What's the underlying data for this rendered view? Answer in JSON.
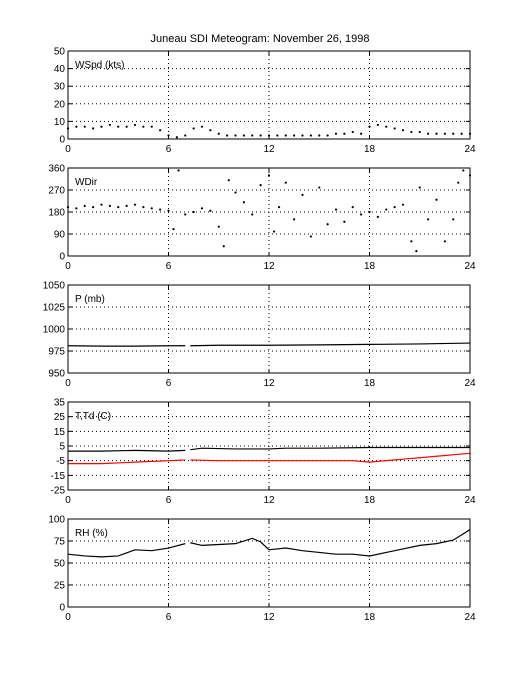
{
  "figure": {
    "title": "Juneau SDI Meteogram:  November 26, 1998"
  },
  "chart_data": [
    {
      "type": "scatter",
      "label": "WSpd (kts)",
      "xlim": [
        0,
        24
      ],
      "ylim": [
        0,
        50
      ],
      "xticks": [
        0,
        6,
        12,
        18,
        24
      ],
      "yticks": [
        0,
        10,
        20,
        30,
        40,
        50
      ],
      "grid": true,
      "series": [
        {
          "color": "#000000",
          "gaps": [],
          "x": [
            0,
            0.5,
            1,
            1.5,
            2,
            2.5,
            3,
            3.5,
            4,
            4.5,
            5,
            5.5,
            6,
            6.5,
            7,
            7.5,
            8,
            8.5,
            9,
            9.5,
            10,
            10.5,
            11,
            11.5,
            12,
            12.5,
            13,
            13.5,
            14,
            14.5,
            15,
            15.5,
            16,
            16.5,
            17,
            17.5,
            18,
            18.5,
            19,
            19.5,
            20,
            20.5,
            21,
            21.5,
            22,
            22.5,
            23,
            23.5,
            24
          ],
          "y": [
            6,
            7,
            7,
            6,
            7,
            8,
            7,
            7,
            8,
            7,
            7,
            5,
            2,
            1,
            2,
            6,
            7,
            5,
            3,
            2,
            2,
            2,
            2,
            2,
            2,
            2,
            2,
            2,
            2,
            2,
            2,
            2,
            3,
            3,
            4,
            3,
            7,
            8,
            7,
            6,
            5,
            4,
            4,
            3,
            3,
            3,
            3,
            3,
            3
          ]
        }
      ]
    },
    {
      "type": "scatter",
      "label": "WDir",
      "xlim": [
        0,
        24
      ],
      "ylim": [
        0,
        360
      ],
      "xticks": [
        0,
        6,
        12,
        18,
        24
      ],
      "yticks": [
        0,
        90,
        180,
        270,
        360
      ],
      "grid": true,
      "series": [
        {
          "color": "#000000",
          "gaps": [],
          "x": [
            0,
            0.5,
            1,
            1.5,
            2,
            2.5,
            3,
            3.5,
            4,
            4.5,
            5,
            5.5,
            6,
            6.3,
            6.6,
            7,
            7.5,
            8,
            8.5,
            9,
            9.3,
            9.6,
            10,
            10.5,
            11,
            11.5,
            12,
            12.3,
            12.6,
            13,
            13.5,
            14,
            14.5,
            15,
            15.5,
            16,
            16.5,
            17,
            17.5,
            18,
            18.5,
            19,
            19.5,
            20,
            20.5,
            20.8,
            21,
            21.5,
            22,
            22.5,
            23,
            23.3,
            23.6,
            24
          ],
          "y": [
            200,
            195,
            205,
            200,
            210,
            205,
            200,
            205,
            210,
            200,
            195,
            190,
            185,
            110,
            350,
            170,
            180,
            195,
            185,
            120,
            40,
            310,
            260,
            220,
            170,
            290,
            330,
            100,
            200,
            300,
            150,
            250,
            80,
            280,
            130,
            190,
            140,
            200,
            170,
            180,
            160,
            190,
            200,
            210,
            60,
            20,
            280,
            150,
            230,
            60,
            150,
            300,
            350,
            330
          ]
        }
      ]
    },
    {
      "type": "line",
      "label": "P (mb)",
      "xlim": [
        0,
        24
      ],
      "ylim": [
        950,
        1050
      ],
      "xticks": [
        0,
        6,
        12,
        18,
        24
      ],
      "yticks": [
        950,
        975,
        1000,
        1025,
        1050
      ],
      "grid": true,
      "series": [
        {
          "color": "#000000",
          "gaps": [
            [
              7.0,
              7.3
            ]
          ],
          "x": [
            0,
            2,
            4,
            6,
            7,
            7.3,
            9,
            12,
            15,
            18,
            21,
            24
          ],
          "y": [
            981,
            980.5,
            980.5,
            981,
            981,
            981,
            981.5,
            981.5,
            982,
            982.5,
            983,
            984
          ]
        }
      ]
    },
    {
      "type": "line",
      "label": "T,Td (C)",
      "xlim": [
        0,
        24
      ],
      "ylim": [
        -25,
        35
      ],
      "xticks": [
        0,
        6,
        12,
        18,
        24
      ],
      "yticks": [
        -25,
        -15,
        -5,
        5,
        15,
        25,
        35
      ],
      "grid": true,
      "series": [
        {
          "color": "#000000",
          "gaps": [
            [
              7.0,
              7.3
            ]
          ],
          "x": [
            0,
            2,
            4,
            6,
            7,
            7.3,
            8,
            10,
            12,
            13,
            15,
            18,
            20,
            22,
            24
          ],
          "y": [
            1.5,
            1.5,
            2,
            1.5,
            2,
            2.5,
            3.5,
            3,
            3,
            3.5,
            3.5,
            4,
            4,
            4,
            4
          ]
        },
        {
          "color": "#ff0000",
          "gaps": [
            [
              7.0,
              7.3
            ]
          ],
          "x": [
            0,
            2,
            4,
            6,
            7,
            7.3,
            9,
            12,
            15,
            17,
            18,
            20,
            22,
            24
          ],
          "y": [
            -7,
            -7,
            -6,
            -5,
            -4.5,
            -4.5,
            -5,
            -5,
            -5,
            -5,
            -6,
            -4,
            -2,
            0
          ]
        }
      ]
    },
    {
      "type": "line",
      "label": "RH (%)",
      "xlim": [
        0,
        24
      ],
      "ylim": [
        0,
        100
      ],
      "xticks": [
        0,
        6,
        12,
        18,
        24
      ],
      "yticks": [
        0,
        25,
        50,
        75,
        100
      ],
      "grid": true,
      "series": [
        {
          "color": "#000000",
          "gaps": [
            [
              7.0,
              7.3
            ]
          ],
          "x": [
            0,
            1,
            2,
            3,
            4,
            5,
            6,
            7,
            7.3,
            8,
            9,
            10,
            11,
            11.5,
            12,
            13,
            14,
            15,
            16,
            17,
            18,
            19,
            20,
            21,
            22,
            23,
            23.5,
            24
          ],
          "y": [
            60,
            58,
            57,
            58,
            65,
            64,
            67,
            72,
            73,
            70,
            71,
            72,
            78,
            74,
            65,
            67,
            64,
            62,
            60,
            60,
            58,
            62,
            66,
            70,
            72,
            76,
            82,
            88
          ]
        }
      ]
    }
  ]
}
